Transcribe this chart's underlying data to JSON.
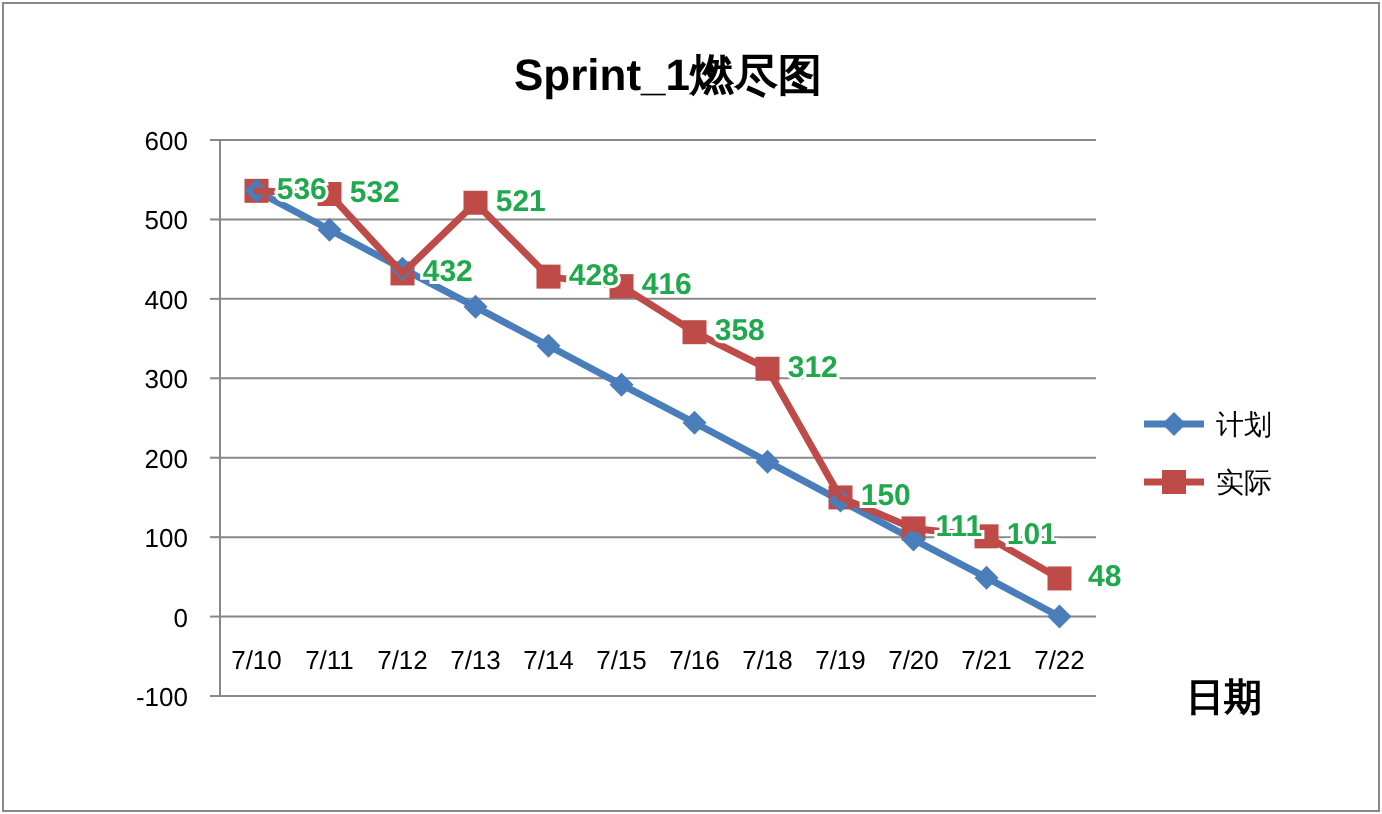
{
  "chart_data": {
    "type": "line",
    "title": "Sprint_1燃尽图",
    "xlabel": "日期",
    "categories": [
      "7/10",
      "7/11",
      "7/12",
      "7/13",
      "7/14",
      "7/15",
      "7/16",
      "7/18",
      "7/19",
      "7/20",
      "7/21",
      "7/22"
    ],
    "series": [
      {
        "name": "计划",
        "color": "#4a7ebb",
        "marker": "diamond",
        "values": [
          536,
          487,
          438,
          390,
          341,
          292,
          244,
          195,
          146,
          97,
          49,
          0
        ]
      },
      {
        "name": "实际",
        "color": "#be4b48",
        "marker": "square",
        "values": [
          536,
          532,
          432,
          521,
          428,
          416,
          358,
          312,
          150,
          111,
          101,
          48
        ],
        "value_labels": [
          "536",
          "532",
          "432",
          "521",
          "428",
          "416",
          "358",
          "312",
          "150",
          "111",
          "101",
          "48"
        ]
      }
    ],
    "ylim": [
      -100,
      600
    ],
    "yticks": [
      -100,
      0,
      100,
      200,
      300,
      400,
      500,
      600
    ],
    "grid": "y",
    "legend": "right"
  }
}
